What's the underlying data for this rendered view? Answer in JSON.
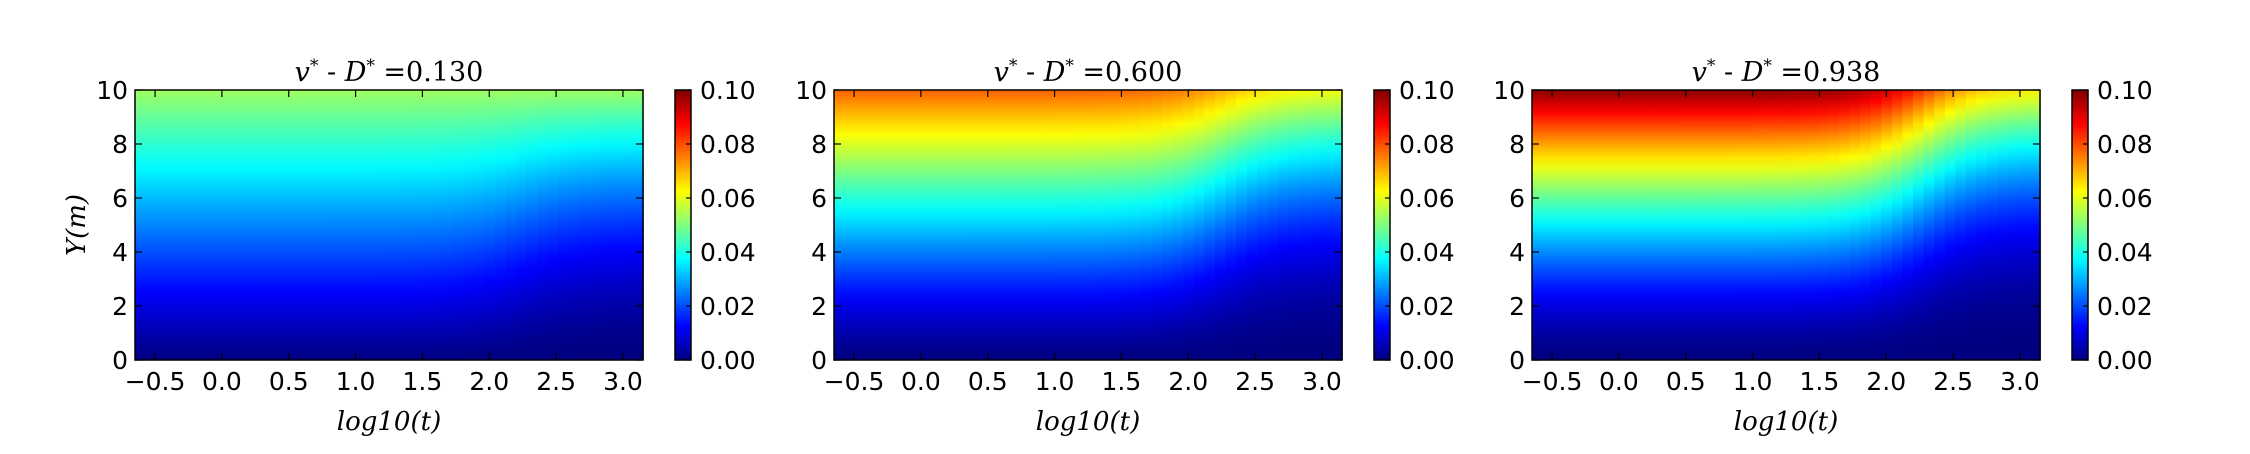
{
  "colorscale": {
    "name": "jet",
    "stops": [
      "#00007f",
      "#0000ff",
      "#007fff",
      "#00ffff",
      "#7fff7f",
      "#ffff00",
      "#ff7f00",
      "#ff0000",
      "#7f0000"
    ]
  },
  "chart_data": [
    {
      "type": "heatmap",
      "title": "v* - D* =0.130",
      "title_parts": {
        "prefix": "v",
        "middle": " - ",
        "var2": "D",
        "value": "=0.130"
      },
      "xlabel": "log10(t)",
      "ylabel": "Y(m)",
      "xlim": [
        -0.65,
        3.15
      ],
      "ylim": [
        0,
        10
      ],
      "xticks": [
        "−0.5",
        "0.0",
        "0.5",
        "1.0",
        "1.5",
        "2.0",
        "2.5",
        "3.0"
      ],
      "yticks": [
        "0",
        "2",
        "4",
        "6",
        "8",
        "10"
      ],
      "colorbar": {
        "min": 0.0,
        "max": 0.1,
        "ticks": [
          "0.00",
          "0.02",
          "0.04",
          "0.06",
          "0.08",
          "0.10"
        ]
      },
      "field": {
        "top_value": 0.053,
        "late_drop": 0.0,
        "exponent": 1.05
      }
    },
    {
      "type": "heatmap",
      "title": "v* - D* =0.600",
      "title_parts": {
        "prefix": "v",
        "middle": " - ",
        "var2": "D",
        "value": "=0.600"
      },
      "xlabel": "log10(t)",
      "ylabel": "",
      "xlim": [
        -0.65,
        3.15
      ],
      "ylim": [
        0,
        10
      ],
      "xticks": [
        "−0.5",
        "0.0",
        "0.5",
        "1.0",
        "1.5",
        "2.0",
        "2.5",
        "3.0"
      ],
      "yticks": [
        "0",
        "2",
        "4",
        "6",
        "8",
        "10"
      ],
      "colorbar": {
        "min": 0.0,
        "max": 0.1,
        "ticks": [
          "0.00",
          "0.02",
          "0.04",
          "0.06",
          "0.08",
          "0.10"
        ]
      },
      "field": {
        "top_value": 0.078,
        "late_drop": 0.017,
        "exponent": 1.25
      }
    },
    {
      "type": "heatmap",
      "title": "v* - D* =0.938",
      "title_parts": {
        "prefix": "v",
        "middle": " - ",
        "var2": "D",
        "value": "=0.938"
      },
      "xlabel": "log10(t)",
      "ylabel": "",
      "xlim": [
        -0.65,
        3.15
      ],
      "ylim": [
        0,
        10
      ],
      "xticks": [
        "−0.5",
        "0.0",
        "0.5",
        "1.0",
        "1.5",
        "2.0",
        "2.5",
        "3.0"
      ],
      "yticks": [
        "0",
        "2",
        "4",
        "6",
        "8",
        "10"
      ],
      "colorbar": {
        "min": 0.0,
        "max": 0.1,
        "ticks": [
          "0.00",
          "0.02",
          "0.04",
          "0.06",
          "0.08",
          "0.10"
        ]
      },
      "field": {
        "top_value": 0.099,
        "late_drop": 0.036,
        "exponent": 1.45
      }
    }
  ]
}
